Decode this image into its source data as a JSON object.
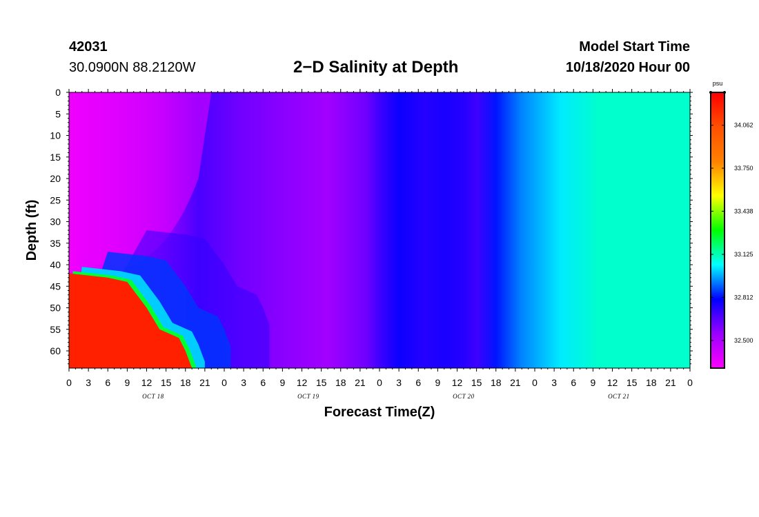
{
  "header": {
    "station_id": "42031",
    "station_location": "30.0900N 88.2120W",
    "title": "2−D Salinity at Depth",
    "model_start_label": "Model Start Time",
    "model_start_time": "10/18/2020 Hour 00"
  },
  "chart_data": {
    "type": "heatmap",
    "title": "2−D Salinity at Depth",
    "xlabel": "Forecast Time(Z)",
    "ylabel": "Depth (ft)",
    "x_tick_labels": [
      "0",
      "3",
      "6",
      "9",
      "12",
      "15",
      "18",
      "21",
      "0",
      "3",
      "6",
      "9",
      "12",
      "15",
      "18",
      "21",
      "0",
      "3",
      "6",
      "9",
      "12",
      "15",
      "18",
      "21",
      "0",
      "3",
      "6",
      "9",
      "12",
      "15",
      "18",
      "21",
      "0"
    ],
    "x_day_labels": [
      {
        "hour": 12,
        "label": "OCT 18"
      },
      {
        "hour": 36,
        "label": "OCT 19"
      },
      {
        "hour": 60,
        "label": "OCT 20"
      },
      {
        "hour": 84,
        "label": "OCT 21"
      }
    ],
    "xlim_hours": [
      0,
      96
    ],
    "y_tick_labels": [
      "0",
      "5",
      "10",
      "15",
      "20",
      "25",
      "30",
      "35",
      "40",
      "45",
      "50",
      "55",
      "60"
    ],
    "ylim_ft": [
      0,
      64
    ],
    "colorbar": {
      "unit": "psu",
      "tick_labels": [
        "34.062",
        "33.750",
        "33.438",
        "33.125",
        "32.812",
        "32.500"
      ],
      "tick_values": [
        34.062,
        33.75,
        33.438,
        33.125,
        32.812,
        32.5
      ],
      "range": [
        32.3,
        34.3
      ],
      "colors": [
        "#ff00ff",
        "#9a00ff",
        "#0000ff",
        "#00ffff",
        "#00ff00",
        "#ffff00",
        "#ff8000",
        "#ff5000",
        "#ff0000"
      ]
    },
    "surface_salinity_by_hour": [
      {
        "hour": 0,
        "value": 32.33
      },
      {
        "hour": 8,
        "value": 32.42
      },
      {
        "hour": 14,
        "value": 32.53
      },
      {
        "hour": 20,
        "value": 32.68
      },
      {
        "hour": 26,
        "value": 32.62
      },
      {
        "hour": 34,
        "value": 32.57
      },
      {
        "hour": 40,
        "value": 32.53
      },
      {
        "hour": 46,
        "value": 32.62
      },
      {
        "hour": 48,
        "value": 32.7
      },
      {
        "hour": 51,
        "value": 32.78
      },
      {
        "hour": 55,
        "value": 32.74
      },
      {
        "hour": 58,
        "value": 32.76
      },
      {
        "hour": 61,
        "value": 32.74
      },
      {
        "hour": 63,
        "value": 32.7
      },
      {
        "hour": 66,
        "value": 32.82
      },
      {
        "hour": 70,
        "value": 32.93
      },
      {
        "hour": 76,
        "value": 33.03
      },
      {
        "hour": 82,
        "value": 33.1
      },
      {
        "hour": 96,
        "value": 33.1
      }
    ],
    "bottom_layer": {
      "description_values": "high-salinity water below ~42 ft at hour 0",
      "boundary_depth_by_hour": [
        {
          "hour": 0,
          "depth": 42
        },
        {
          "hour": 6,
          "depth": 43
        },
        {
          "hour": 9,
          "depth": 44
        },
        {
          "hour": 12,
          "depth": 50
        },
        {
          "hour": 14,
          "depth": 55
        },
        {
          "hour": 17,
          "depth": 57
        },
        {
          "hour": 18,
          "depth": 60
        },
        {
          "hour": 19,
          "depth": 64
        }
      ],
      "value": 34.2
    }
  }
}
